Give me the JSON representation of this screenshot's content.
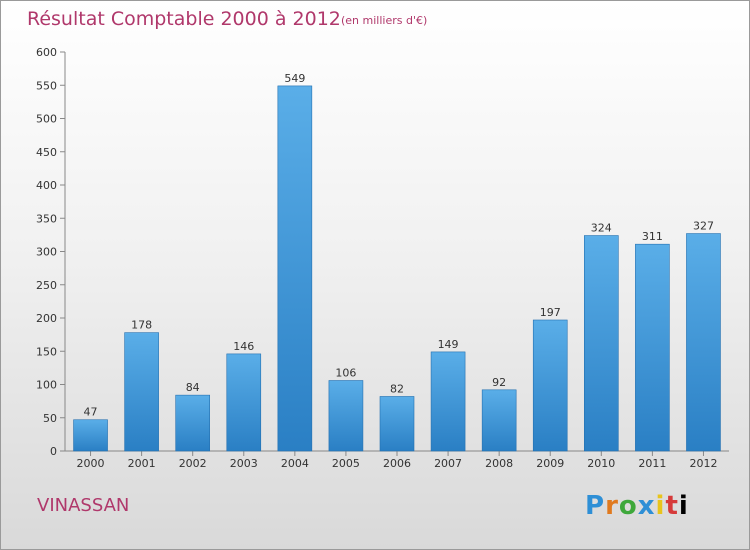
{
  "header": {
    "title": "Résultat Comptable 2000 à 2012",
    "subtitle": "(en milliers d'€)"
  },
  "footer": {
    "commune": "VINASSAN",
    "logo_letters": [
      "P",
      "r",
      "o",
      "x",
      "i",
      "t",
      "i"
    ]
  },
  "chart_data": {
    "type": "bar",
    "categories": [
      "2000",
      "2001",
      "2002",
      "2003",
      "2004",
      "2005",
      "2006",
      "2007",
      "2008",
      "2009",
      "2010",
      "2011",
      "2012"
    ],
    "values": [
      47,
      178,
      84,
      146,
      549,
      106,
      82,
      149,
      92,
      197,
      324,
      311,
      327
    ],
    "ylim": [
      0,
      600
    ],
    "yticks": [
      0,
      50,
      100,
      150,
      200,
      250,
      300,
      350,
      400,
      450,
      500,
      550,
      600
    ],
    "grid": false,
    "legend": "none",
    "colors": {
      "bar_top": "#5aaee8",
      "bar_bottom": "#2a7fc4",
      "text": "#333333",
      "axis": "#888888"
    }
  }
}
